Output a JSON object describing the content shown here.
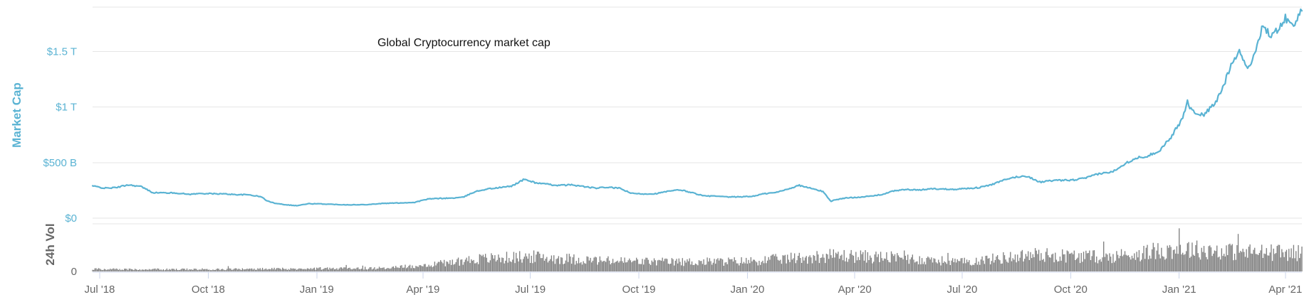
{
  "chart_data": {
    "type": "line",
    "title": "Global Cryptocurrency market cap",
    "ylabel": "Market Cap",
    "ylim": [
      0,
      1900000000000
    ],
    "y_ticks": [
      {
        "value": 0,
        "label": "$0"
      },
      {
        "value": 500000000000,
        "label": "$500 B"
      },
      {
        "value": 1000000000000,
        "label": "$1 T"
      },
      {
        "value": 1500000000000,
        "label": "$1.5 T"
      }
    ],
    "x_range": [
      "2018-06-25",
      "2021-04-15"
    ],
    "x_ticks": [
      {
        "date": "2018-07-01",
        "label": "Jul '18"
      },
      {
        "date": "2018-10-01",
        "label": "Oct '18"
      },
      {
        "date": "2019-01-01",
        "label": "Jan '19"
      },
      {
        "date": "2019-04-01",
        "label": "Apr '19"
      },
      {
        "date": "2019-07-01",
        "label": "Jul '19"
      },
      {
        "date": "2019-10-01",
        "label": "Oct '19"
      },
      {
        "date": "2020-01-01",
        "label": "Jan '20"
      },
      {
        "date": "2020-04-01",
        "label": "Apr '20"
      },
      {
        "date": "2020-07-01",
        "label": "Jul '20"
      },
      {
        "date": "2020-10-01",
        "label": "Oct '20"
      },
      {
        "date": "2021-01-01",
        "label": "Jan '21"
      },
      {
        "date": "2021-04-01",
        "label": "Apr '21"
      }
    ],
    "grid": true,
    "colors": {
      "market_cap": "#5ab3d3",
      "volume": "#7f7f7f"
    },
    "market_cap": {
      "dates": [
        "2018-06-25",
        "2018-07-05",
        "2018-07-15",
        "2018-07-25",
        "2018-08-05",
        "2018-08-15",
        "2018-08-25",
        "2018-09-05",
        "2018-09-15",
        "2018-09-25",
        "2018-10-05",
        "2018-10-15",
        "2018-10-25",
        "2018-11-05",
        "2018-11-15",
        "2018-11-20",
        "2018-11-25",
        "2018-12-05",
        "2018-12-15",
        "2018-12-25",
        "2019-01-05",
        "2019-01-15",
        "2019-01-25",
        "2019-02-05",
        "2019-02-15",
        "2019-02-25",
        "2019-03-05",
        "2019-03-15",
        "2019-03-25",
        "2019-04-05",
        "2019-04-15",
        "2019-04-25",
        "2019-05-05",
        "2019-05-15",
        "2019-05-25",
        "2019-06-05",
        "2019-06-15",
        "2019-06-26",
        "2019-07-05",
        "2019-07-15",
        "2019-07-25",
        "2019-08-05",
        "2019-08-15",
        "2019-08-25",
        "2019-09-05",
        "2019-09-15",
        "2019-09-25",
        "2019-10-05",
        "2019-10-15",
        "2019-10-25",
        "2019-11-05",
        "2019-11-15",
        "2019-11-25",
        "2019-12-05",
        "2019-12-15",
        "2019-12-25",
        "2020-01-05",
        "2020-01-15",
        "2020-01-25",
        "2020-02-05",
        "2020-02-14",
        "2020-02-25",
        "2020-03-05",
        "2020-03-12",
        "2020-03-15",
        "2020-03-25",
        "2020-04-05",
        "2020-04-15",
        "2020-04-25",
        "2020-05-05",
        "2020-05-15",
        "2020-05-25",
        "2020-06-05",
        "2020-06-15",
        "2020-06-25",
        "2020-07-05",
        "2020-07-15",
        "2020-07-25",
        "2020-08-05",
        "2020-08-15",
        "2020-08-25",
        "2020-09-05",
        "2020-09-15",
        "2020-09-25",
        "2020-10-05",
        "2020-10-15",
        "2020-10-25",
        "2020-11-05",
        "2020-11-15",
        "2020-11-25",
        "2020-12-05",
        "2020-12-15",
        "2020-12-25",
        "2021-01-03",
        "2021-01-08",
        "2021-01-12",
        "2021-01-22",
        "2021-02-01",
        "2021-02-08",
        "2021-02-15",
        "2021-02-21",
        "2021-02-28",
        "2021-03-05",
        "2021-03-13",
        "2021-03-20",
        "2021-03-25",
        "2021-04-01",
        "2021-04-08",
        "2021-04-14"
      ],
      "values": [
        290000000000,
        270000000000,
        275000000000,
        300000000000,
        285000000000,
        230000000000,
        228000000000,
        225000000000,
        215000000000,
        222000000000,
        220000000000,
        218000000000,
        212000000000,
        210000000000,
        192000000000,
        155000000000,
        138000000000,
        122000000000,
        112000000000,
        130000000000,
        128000000000,
        124000000000,
        121000000000,
        120000000000,
        124000000000,
        132000000000,
        135000000000,
        138000000000,
        142000000000,
        172000000000,
        178000000000,
        180000000000,
        188000000000,
        238000000000,
        262000000000,
        275000000000,
        288000000000,
        350000000000,
        320000000000,
        305000000000,
        295000000000,
        300000000000,
        285000000000,
        270000000000,
        278000000000,
        268000000000,
        222000000000,
        218000000000,
        220000000000,
        240000000000,
        255000000000,
        230000000000,
        200000000000,
        198000000000,
        190000000000,
        192000000000,
        196000000000,
        220000000000,
        230000000000,
        265000000000,
        295000000000,
        265000000000,
        240000000000,
        150000000000,
        165000000000,
        182000000000,
        190000000000,
        198000000000,
        215000000000,
        248000000000,
        258000000000,
        252000000000,
        265000000000,
        262000000000,
        260000000000,
        268000000000,
        275000000000,
        298000000000,
        340000000000,
        370000000000,
        378000000000,
        325000000000,
        338000000000,
        340000000000,
        345000000000,
        365000000000,
        400000000000,
        415000000000,
        485000000000,
        540000000000,
        560000000000,
        605000000000,
        730000000000,
        880000000000,
        1050000000000,
        960000000000,
        930000000000,
        1040000000000,
        1200000000000,
        1420000000000,
        1500000000000,
        1350000000000,
        1440000000000,
        1750000000000,
        1620000000000,
        1700000000000,
        1800000000000,
        1720000000000,
        1890000000000
      ]
    },
    "volume": {
      "label": "24h Vol",
      "ticks": [
        {
          "value": 0,
          "label": "0"
        }
      ],
      "ylim": [
        0,
        480000000000
      ],
      "dates": [
        "2018-06-25",
        "2018-09-01",
        "2018-12-01",
        "2019-03-01",
        "2019-04-01",
        "2019-05-15",
        "2019-07-01",
        "2019-09-01",
        "2019-11-01",
        "2020-01-01",
        "2020-03-15",
        "2020-05-01",
        "2020-07-01",
        "2020-09-01",
        "2020-11-01",
        "2021-01-01",
        "2021-02-15",
        "2021-04-14"
      ],
      "values": [
        28000000000,
        25000000000,
        32000000000,
        42000000000,
        75000000000,
        150000000000,
        180000000000,
        130000000000,
        115000000000,
        125000000000,
        195000000000,
        170000000000,
        115000000000,
        205000000000,
        175000000000,
        280000000000,
        240000000000,
        225000000000
      ]
    }
  }
}
